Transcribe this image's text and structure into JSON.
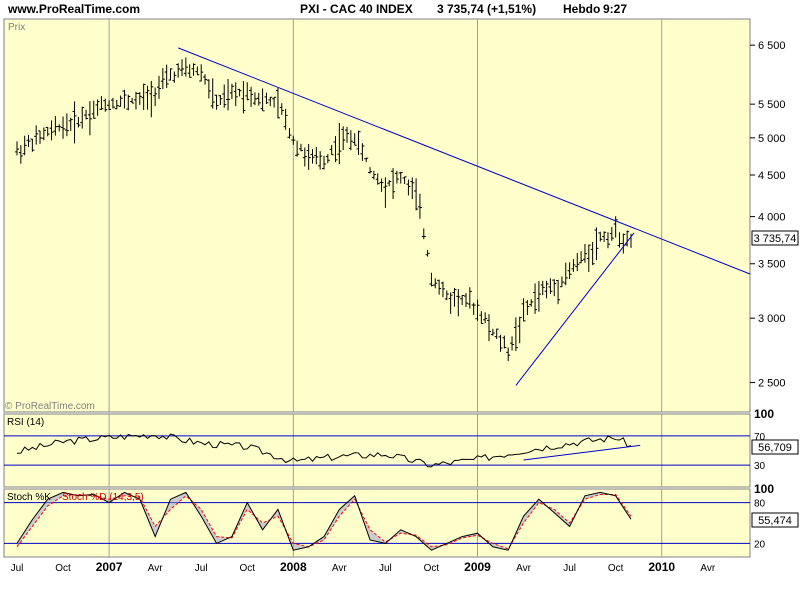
{
  "header": {
    "site": "www.ProRealTime.com",
    "title": "PXI - CAC 40 INDEX",
    "price_change": "3 735,74 (+1,51%)",
    "period": "Hebdo",
    "time": "9:27"
  },
  "price_panel": {
    "label": "Prix",
    "watermark": "© ProRealTime.com",
    "last_value": "3 735,74",
    "y_ticks": [
      "6 500",
      "5 500",
      "5 000",
      "4 500",
      "4 000",
      "3 500",
      "3 000",
      "2 500"
    ],
    "scale": "log"
  },
  "rsi_panel": {
    "label": "RSI (14)",
    "y_ticks": [
      "100",
      "70",
      "30"
    ],
    "last_value": "56,709"
  },
  "stoch_panel": {
    "label": "Stoch %K",
    "label2": "Stoch %D (14,3,5)",
    "y_ticks": [
      "100",
      "80",
      "20"
    ],
    "last_value": "55,474"
  },
  "x_axis": {
    "labels": [
      "Jul",
      "Oct",
      "2007",
      "Avr",
      "Jul",
      "Oct",
      "2008",
      "Avr",
      "Jul",
      "Oct",
      "2009",
      "Avr",
      "Jul",
      "Oct",
      "2010",
      "Avr"
    ],
    "bold": [
      "2007",
      "2008",
      "2009",
      "2010"
    ]
  },
  "colors": {
    "panel_bg": "#ffffcc",
    "trendline": "#0000cc",
    "bars": "#000000",
    "stoch_d": "#ff0000",
    "stoch_fill": "#9999cc"
  },
  "chart_data": [
    {
      "type": "ohlc",
      "name": "CAC 40 weekly price",
      "scale": "log",
      "ylim": [
        2300,
        7000
      ],
      "x": [
        "2006-07",
        "2006-08",
        "2006-09",
        "2006-10",
        "2006-11",
        "2006-12",
        "2007-01",
        "2007-02",
        "2007-03",
        "2007-04",
        "2007-05",
        "2007-06",
        "2007-07",
        "2007-08",
        "2007-09",
        "2007-10",
        "2007-11",
        "2007-12",
        "2008-01",
        "2008-02",
        "2008-03",
        "2008-04",
        "2008-05",
        "2008-06",
        "2008-07",
        "2008-08",
        "2008-09",
        "2008-10",
        "2008-11",
        "2008-12",
        "2009-01",
        "2009-02",
        "2009-03",
        "2009-04",
        "2009-05",
        "2009-06",
        "2009-07",
        "2009-08",
        "2009-09",
        "2009-10",
        "2009-11"
      ],
      "close": [
        4850,
        4980,
        5100,
        5220,
        5300,
        5450,
        5550,
        5580,
        5600,
        5750,
        6000,
        6100,
        6050,
        5550,
        5700,
        5750,
        5600,
        5550,
        5000,
        4750,
        4700,
        5000,
        5050,
        4600,
        4400,
        4500,
        4300,
        3400,
        3200,
        3200,
        3100,
        2900,
        2750,
        3050,
        3250,
        3300,
        3450,
        3600,
        3800,
        3850,
        3735.74
      ]
    },
    {
      "type": "line",
      "name": "RSI (14)",
      "ylim": [
        0,
        100
      ],
      "x": [
        "2006-07",
        "2006-10",
        "2007-01",
        "2007-04",
        "2007-07",
        "2007-10",
        "2008-01",
        "2008-04",
        "2008-07",
        "2008-10",
        "2009-01",
        "2009-04",
        "2009-07",
        "2009-10",
        "2009-11"
      ],
      "values": [
        48,
        62,
        68,
        72,
        60,
        55,
        35,
        42,
        45,
        30,
        38,
        50,
        60,
        68,
        56.709
      ]
    },
    {
      "type": "line",
      "name": "Stoch %K / %D (14,3,5)",
      "ylim": [
        0,
        100
      ],
      "x": [
        "2006-07",
        "2006-08",
        "2006-09",
        "2006-10",
        "2006-11",
        "2006-12",
        "2007-01",
        "2007-02",
        "2007-03",
        "2007-04",
        "2007-05",
        "2007-06",
        "2007-07",
        "2007-08",
        "2007-09",
        "2007-10",
        "2007-11",
        "2007-12",
        "2008-01",
        "2008-02",
        "2008-03",
        "2008-04",
        "2008-05",
        "2008-06",
        "2008-07",
        "2008-08",
        "2008-09",
        "2008-10",
        "2008-11",
        "2008-12",
        "2009-01",
        "2009-02",
        "2009-03",
        "2009-04",
        "2009-05",
        "2009-06",
        "2009-07",
        "2009-08",
        "2009-09",
        "2009-10",
        "2009-11"
      ],
      "series": [
        {
          "name": "%K",
          "values": [
            20,
            55,
            85,
            95,
            90,
            92,
            80,
            95,
            85,
            30,
            85,
            95,
            60,
            20,
            30,
            80,
            40,
            70,
            10,
            15,
            30,
            70,
            90,
            25,
            20,
            40,
            30,
            10,
            20,
            30,
            35,
            15,
            10,
            60,
            85,
            65,
            45,
            90,
            95,
            90,
            55.474
          ]
        },
        {
          "name": "%D",
          "values": [
            15,
            45,
            75,
            90,
            92,
            90,
            85,
            90,
            88,
            45,
            70,
            90,
            70,
            30,
            28,
            70,
            50,
            60,
            20,
            15,
            25,
            60,
            85,
            40,
            22,
            35,
            32,
            15,
            18,
            28,
            32,
            20,
            12,
            50,
            80,
            70,
            50,
            85,
            92,
            92,
            60
          ]
        }
      ]
    }
  ]
}
